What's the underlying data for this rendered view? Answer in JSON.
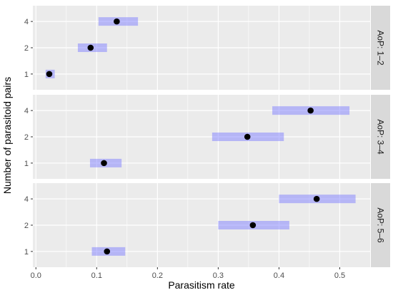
{
  "chart_data": {
    "type": "faceted-pointrange",
    "xlabel": "Parasitism rate",
    "ylabel": "Number of parasitoid pairs",
    "xlim": [
      -0.005,
      0.55
    ],
    "x_ticks": [
      "0.0",
      "0.1",
      "0.2",
      "0.3",
      "0.4",
      "0.5"
    ],
    "x_tick_values": [
      0.0,
      0.1,
      0.2,
      0.3,
      0.4,
      0.5
    ],
    "y_categories": [
      "1",
      "2",
      "4"
    ],
    "colors": {
      "point": "#000000",
      "interval": "#8080ff",
      "panel_bg": "#ebebeb",
      "strip_bg": "#d9d9d9",
      "grid": "#ffffff"
    },
    "grid": true,
    "panels": [
      {
        "strip_label": "AoP: 1–2",
        "points": [
          {
            "pairs": "1",
            "rate": 0.022,
            "lower": 0.016,
            "upper": 0.031
          },
          {
            "pairs": "2",
            "rate": 0.09,
            "lower": 0.069,
            "upper": 0.117
          },
          {
            "pairs": "4",
            "rate": 0.133,
            "lower": 0.103,
            "upper": 0.168
          }
        ]
      },
      {
        "strip_label": "AoP: 3–4",
        "points": [
          {
            "pairs": "1",
            "rate": 0.112,
            "lower": 0.089,
            "upper": 0.141
          },
          {
            "pairs": "2",
            "rate": 0.348,
            "lower": 0.29,
            "upper": 0.408
          },
          {
            "pairs": "4",
            "rate": 0.452,
            "lower": 0.389,
            "upper": 0.516
          }
        ]
      },
      {
        "strip_label": "AoP: 5–6",
        "points": [
          {
            "pairs": "1",
            "rate": 0.117,
            "lower": 0.092,
            "upper": 0.147
          },
          {
            "pairs": "2",
            "rate": 0.357,
            "lower": 0.3,
            "upper": 0.417
          },
          {
            "pairs": "4",
            "rate": 0.462,
            "lower": 0.4,
            "upper": 0.526
          }
        ]
      }
    ]
  }
}
